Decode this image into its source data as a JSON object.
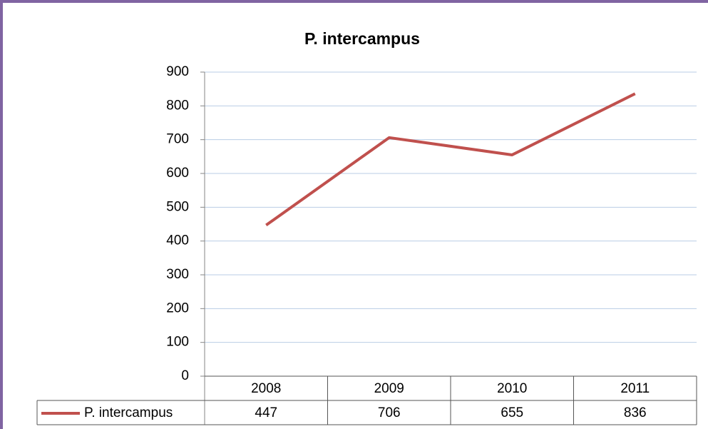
{
  "chart_data": {
    "type": "line",
    "title": "P. intercampus",
    "categories": [
      "2008",
      "2009",
      "2010",
      "2011"
    ],
    "series": [
      {
        "name": "P. intercampus",
        "color": "#c0504d",
        "values": [
          447,
          706,
          655,
          836
        ]
      }
    ],
    "ylim": [
      0,
      900
    ],
    "yticks": [
      0,
      100,
      200,
      300,
      400,
      500,
      600,
      700,
      800,
      900
    ],
    "grid": true,
    "legend": "table"
  }
}
